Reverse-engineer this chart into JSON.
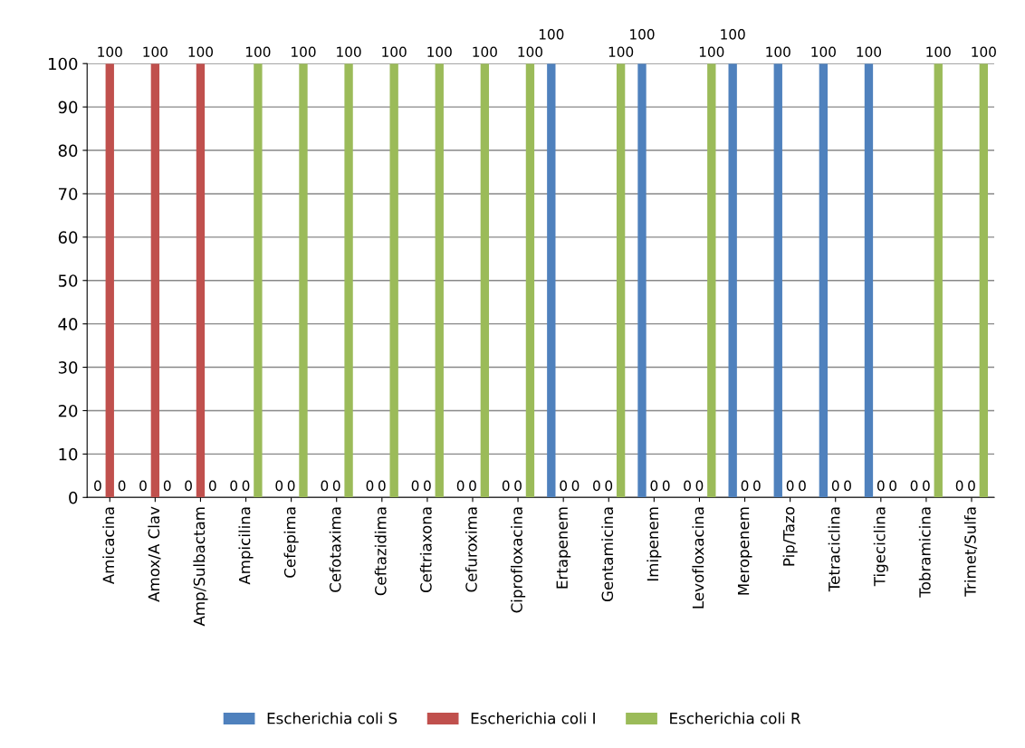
{
  "chart_data": {
    "type": "bar",
    "categories": [
      "Amicacina",
      "Amox/A Clav",
      "Amp/Sulbactam",
      "Ampicilina",
      "Cefepima",
      "Cefotaxima",
      "Ceftazidima",
      "Ceftriaxona",
      "Cefuroxima",
      "Ciprofloxacina",
      "Ertapenem",
      "Gentamicina",
      "Imipenem",
      "Levofloxacina",
      "Meropenem",
      "Pip/Tazo",
      "Tetraciclina",
      "Tigeciclina",
      "Tobramicina",
      "Trimet/Sulfa"
    ],
    "series": [
      {
        "name": "Escherichia coli S",
        "color": "#4f81bd",
        "values": [
          0,
          0,
          0,
          0,
          0,
          0,
          0,
          0,
          0,
          0,
          100,
          0,
          100,
          0,
          100,
          100,
          100,
          100,
          0,
          0
        ]
      },
      {
        "name": "Escherichia coli I",
        "color": "#c0504d",
        "values": [
          100,
          100,
          100,
          0,
          0,
          0,
          0,
          0,
          0,
          0,
          0,
          0,
          0,
          0,
          0,
          0,
          0,
          0,
          0,
          0
        ]
      },
      {
        "name": "Escherichia coli R",
        "color": "#9bbb59",
        "values": [
          0,
          0,
          0,
          100,
          100,
          100,
          100,
          100,
          100,
          100,
          0,
          100,
          0,
          100,
          0,
          0,
          0,
          0,
          100,
          100
        ]
      }
    ],
    "ylim": [
      0,
      100
    ],
    "yticks": [
      0,
      10,
      20,
      30,
      40,
      50,
      60,
      70,
      80,
      90,
      100
    ],
    "grid": "y",
    "legend": "bottom",
    "data_labels": true
  }
}
